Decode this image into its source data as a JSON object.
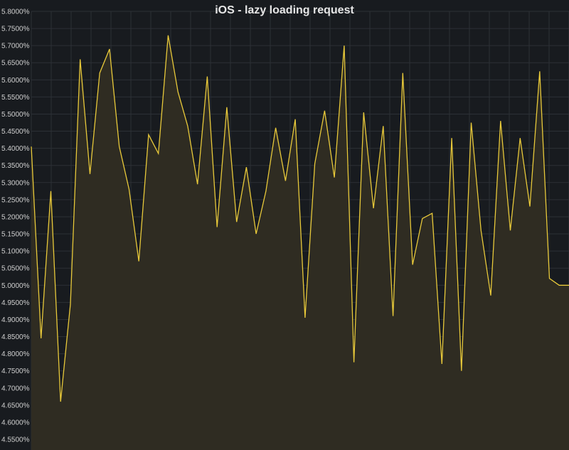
{
  "chart_data": {
    "type": "area",
    "title": "iOS - lazy loading request",
    "xlabel": "",
    "ylabel": "",
    "ylim": [
      4.5,
      5.8
    ],
    "grid": true,
    "legend": "none",
    "y_ticks": [
      "4.5500%",
      "4.6000%",
      "4.6500%",
      "4.7000%",
      "4.7500%",
      "4.8000%",
      "4.8500%",
      "4.9000%",
      "4.9500%",
      "5.0000%",
      "5.0500%",
      "5.1000%",
      "5.1500%",
      "5.2000%",
      "5.2500%",
      "5.3000%",
      "5.3500%",
      "5.4000%",
      "5.4500%",
      "5.5000%",
      "5.5500%",
      "5.6000%",
      "5.6500%",
      "5.7000%",
      "5.7500%",
      "5.8000%"
    ],
    "y_tick_values": [
      4.55,
      4.6,
      4.65,
      4.7,
      4.75,
      4.8,
      4.85,
      4.9,
      4.95,
      5.0,
      5.05,
      5.1,
      5.15,
      5.2,
      5.25,
      5.3,
      5.35,
      5.4,
      5.45,
      5.5,
      5.55,
      5.6,
      5.65,
      5.7,
      5.75,
      5.8
    ],
    "x": [
      0,
      1,
      2,
      3,
      4,
      5,
      6,
      7,
      8,
      9,
      10,
      11,
      12,
      13,
      14,
      15,
      16,
      17,
      18,
      19,
      20,
      21,
      22,
      23,
      24,
      25,
      26,
      27,
      28,
      29,
      30,
      31,
      32,
      33,
      34,
      35,
      36,
      37,
      38,
      39,
      40,
      41,
      42,
      43,
      44,
      45,
      46,
      47,
      48,
      49,
      50,
      51,
      52,
      53,
      54,
      55
    ],
    "series": [
      {
        "values": [
          5.405,
          4.845,
          5.275,
          4.66,
          4.945,
          5.66,
          5.325,
          5.62,
          5.69,
          5.405,
          5.28,
          5.07,
          5.44,
          5.385,
          5.73,
          5.565,
          5.465,
          5.295,
          5.61,
          5.17,
          5.52,
          5.185,
          5.345,
          5.15,
          5.275,
          5.46,
          5.305,
          5.485,
          4.905,
          5.355,
          5.51,
          5.315,
          5.7,
          4.775,
          5.505,
          5.225,
          5.465,
          4.91,
          5.62,
          5.06,
          5.195,
          5.21,
          4.77,
          5.43,
          4.75,
          5.475,
          5.16,
          4.97,
          5.48,
          5.16,
          5.43,
          5.23,
          5.625,
          5.02,
          5.0,
          5.0
        ]
      }
    ],
    "colors": {
      "line": "#e8c93a",
      "fill": "#2f2c22",
      "background": "#181b1f",
      "grid": "#2c3036"
    }
  }
}
